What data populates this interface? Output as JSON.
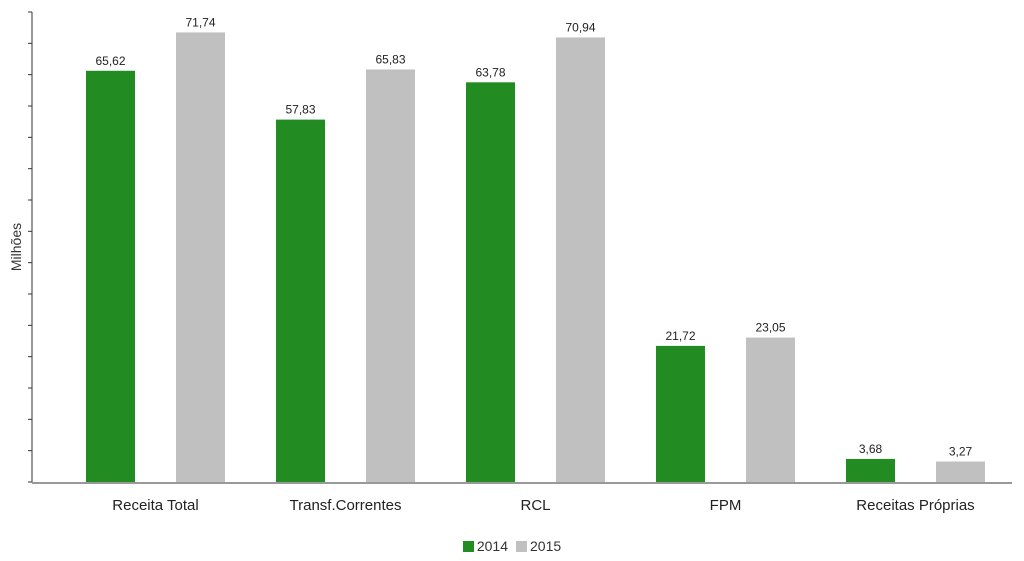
{
  "chart_data": {
    "type": "bar",
    "ylabel": "Milhões",
    "ylim": [
      0,
      75
    ],
    "grid": false,
    "legend_position": "bottom-center",
    "categories": [
      "Receita Total",
      "Transf.Correntes",
      "RCL",
      "FPM",
      "Receitas Próprias"
    ],
    "series": [
      {
        "name": "2014",
        "color": "#228B22",
        "values": [
          65.62,
          57.83,
          63.78,
          21.72,
          3.68
        ],
        "labels": [
          "65,62",
          "57,83",
          "63,78",
          "21,72",
          "3,68"
        ]
      },
      {
        "name": "2015",
        "color": "#C0C0C0",
        "values": [
          71.74,
          65.83,
          70.94,
          23.05,
          3.27
        ],
        "labels": [
          "71,74",
          "65,83",
          "70,94",
          "23,05",
          "3,27"
        ]
      }
    ]
  }
}
